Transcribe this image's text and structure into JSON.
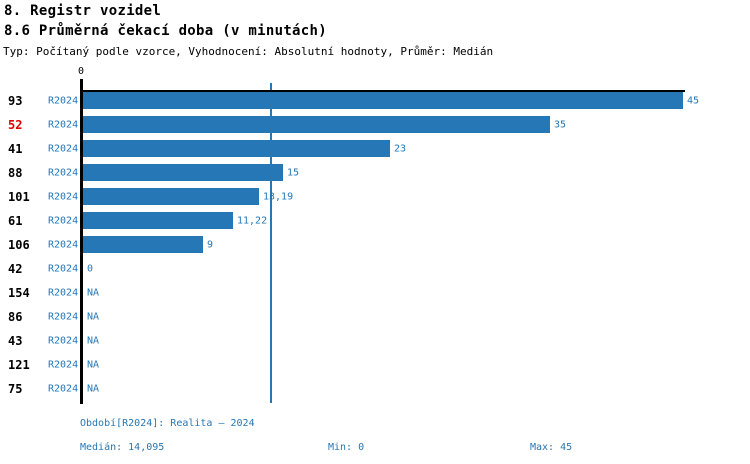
{
  "header": {
    "title": "8. Registr vozidel",
    "subtitle": "8.6 Průměrná čekací doba (v minutách)",
    "meta": "Typ: Počítaný podle vzorce, Vyhodnocení: Absolutní hodnoty, Průměr: Medián"
  },
  "chart_data": {
    "type": "bar",
    "orientation": "horizontal",
    "title": "8.6 Průměrná čekací doba (v minutách)",
    "xlim": [
      0,
      45
    ],
    "axis_tick_label": "0",
    "grid": false,
    "median_value": 14.095,
    "rows": [
      {
        "id": "93",
        "period": "R2024",
        "value": 45,
        "value_label": "45",
        "highlight": false
      },
      {
        "id": "52",
        "period": "R2024",
        "value": 35,
        "value_label": "35",
        "highlight": true
      },
      {
        "id": "41",
        "period": "R2024",
        "value": 23,
        "value_label": "23",
        "highlight": false
      },
      {
        "id": "88",
        "period": "R2024",
        "value": 15,
        "value_label": "15",
        "highlight": false
      },
      {
        "id": "101",
        "period": "R2024",
        "value": 13.19,
        "value_label": "13,19",
        "highlight": false
      },
      {
        "id": "61",
        "period": "R2024",
        "value": 11.22,
        "value_label": "11,22",
        "highlight": false
      },
      {
        "id": "106",
        "period": "R2024",
        "value": 9,
        "value_label": "9",
        "highlight": false
      },
      {
        "id": "42",
        "period": "R2024",
        "value": 0,
        "value_label": "0",
        "highlight": false
      },
      {
        "id": "154",
        "period": "R2024",
        "value": null,
        "value_label": "NA",
        "highlight": false
      },
      {
        "id": "86",
        "period": "R2024",
        "value": null,
        "value_label": "NA",
        "highlight": false
      },
      {
        "id": "43",
        "period": "R2024",
        "value": null,
        "value_label": "NA",
        "highlight": false
      },
      {
        "id": "121",
        "period": "R2024",
        "value": null,
        "value_label": "NA",
        "highlight": false
      },
      {
        "id": "75",
        "period": "R2024",
        "value": null,
        "value_label": "NA",
        "highlight": false
      }
    ]
  },
  "footer": {
    "period_info": "Období[R2024]: Realita – 2024",
    "median": "Medián: 14,095",
    "min": "Min: 0",
    "max": "Max: 45"
  },
  "colors": {
    "bar": "#2577b5",
    "accent_text": "#2577b5",
    "highlight_row": "#dd0000",
    "text": "#000000",
    "background": "#ffffff"
  }
}
